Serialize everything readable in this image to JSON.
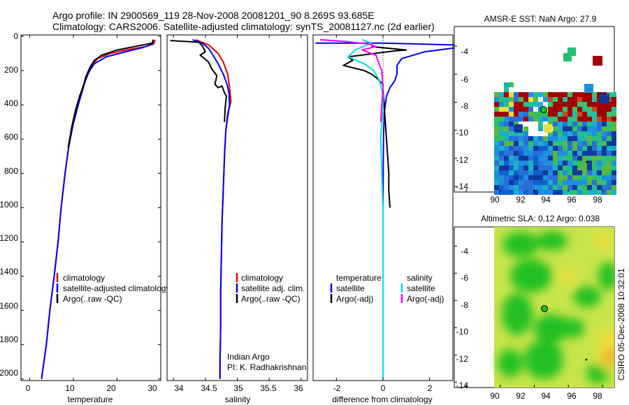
{
  "header": {
    "line1": "Argo profile: IN 2900569_119 28-Nov-2008 20081201_90 8.269S 93.685E",
    "line2": "Climatology: CARS2006. Satellite-adjusted climatology: synTS_20081127.nc (2d earlier)"
  },
  "side_label": "CSIRO 05-Dec-2008 10:32:01",
  "colors": {
    "climatology": "#e00000",
    "satellite": "#0000ee",
    "argo": "#000000",
    "satellite_sal": "#00e0e0",
    "argo_sal": "#ff00ff",
    "ocean_bg": "#20c020"
  },
  "chart_data": [
    {
      "id": "temperature",
      "type": "line",
      "xlabel": "temperature",
      "ylabel": "",
      "xlim": [
        -2,
        30
      ],
      "ylim": [
        2050,
        0
      ],
      "xticks": [
        "0",
        "10",
        "20",
        "30"
      ],
      "yticks": [
        "0",
        "200",
        "400",
        "600",
        "800",
        "1000",
        "1200",
        "1400",
        "1600",
        "1800",
        "2000"
      ],
      "legend": [
        "climatology",
        "satellite-adjusted climatology",
        "Argo(..raw -QC)"
      ],
      "series": [
        {
          "name": "climatology",
          "color": "#e00000",
          "points": [
            [
              28.7,
              20
            ],
            [
              28.4,
              45
            ],
            [
              26.5,
              60
            ],
            [
              22,
              80
            ],
            [
              18.5,
              100
            ],
            [
              15.5,
              130
            ],
            [
              14.3,
              170
            ],
            [
              13.2,
              230
            ],
            [
              12.2,
              290
            ],
            [
              11.5,
              350
            ],
            [
              10.6,
              430
            ],
            [
              9.8,
              520
            ],
            [
              8.9,
              650
            ],
            [
              8.1,
              800
            ],
            [
              7.2,
              1000
            ],
            [
              6.5,
              1200
            ],
            [
              5.6,
              1400
            ],
            [
              4.6,
              1600
            ],
            [
              3.8,
              1800
            ],
            [
              2.7,
              2000
            ]
          ]
        },
        {
          "name": "satellite-adjusted climatology",
          "color": "#0000ee",
          "points": [
            [
              28.3,
              20
            ],
            [
              28.1,
              45
            ],
            [
              26,
              65
            ],
            [
              22,
              90
            ],
            [
              17.5,
              120
            ],
            [
              14.8,
              160
            ],
            [
              13.5,
              210
            ],
            [
              12.6,
              270
            ],
            [
              11.8,
              340
            ],
            [
              10.9,
              420
            ],
            [
              9.9,
              520
            ],
            [
              8.9,
              650
            ],
            [
              8.1,
              800
            ],
            [
              7.2,
              1000
            ],
            [
              6.5,
              1200
            ],
            [
              5.6,
              1400
            ],
            [
              4.6,
              1600
            ],
            [
              3.8,
              1800
            ],
            [
              2.7,
              2000
            ]
          ]
        },
        {
          "name": "Argo(..raw -QC)",
          "color": "#000000",
          "points": [
            [
              28.3,
              20
            ],
            [
              28,
              40
            ],
            [
              24,
              60
            ],
            [
              20,
              80
            ],
            [
              16.5,
              110
            ],
            [
              14.8,
              140
            ],
            [
              13.8,
              180
            ],
            [
              12.8,
              240
            ],
            [
              12.3,
              290
            ],
            [
              11.4,
              350
            ],
            [
              10.5,
              430
            ],
            [
              9.7,
              520
            ],
            [
              8.8,
              650
            ]
          ]
        }
      ]
    },
    {
      "id": "salinity",
      "type": "line",
      "xlabel": "salinity",
      "ylabel": "",
      "xlim": [
        33.9,
        36.1
      ],
      "ylim": [
        2050,
        0
      ],
      "xticks": [
        "34",
        "34.5",
        "35",
        "35.5",
        "36"
      ],
      "legend": [
        "climatology",
        "satellite adj. clim.",
        "Argo(..raw -QC)"
      ],
      "annotation": [
        "Indian Argo",
        "PI: K. Radhakrishnan"
      ],
      "series": [
        {
          "name": "climatology",
          "color": "#e00000",
          "points": [
            [
              34.35,
              20
            ],
            [
              34.55,
              50
            ],
            [
              34.7,
              100
            ],
            [
              34.78,
              150
            ],
            [
              34.85,
              220
            ],
            [
              34.88,
              300
            ],
            [
              34.9,
              380
            ],
            [
              34.85,
              450
            ],
            [
              34.82,
              550
            ],
            [
              34.8,
              700
            ],
            [
              34.78,
              900
            ],
            [
              34.76,
              1100
            ],
            [
              34.75,
              1300
            ],
            [
              34.74,
              1500
            ],
            [
              34.74,
              1700
            ],
            [
              34.73,
              1900
            ],
            [
              34.73,
              2000
            ]
          ]
        },
        {
          "name": "satellite adj. clim.",
          "color": "#0000ee",
          "points": [
            [
              34.3,
              20
            ],
            [
              34.45,
              40
            ],
            [
              34.55,
              70
            ],
            [
              34.62,
              110
            ],
            [
              34.7,
              160
            ],
            [
              34.78,
              220
            ],
            [
              34.84,
              280
            ],
            [
              34.87,
              330
            ],
            [
              34.88,
              400
            ],
            [
              34.85,
              470
            ],
            [
              34.82,
              550
            ],
            [
              34.8,
              700
            ],
            [
              34.78,
              900
            ],
            [
              34.76,
              1100
            ],
            [
              34.75,
              1300
            ],
            [
              34.74,
              1500
            ],
            [
              34.74,
              1700
            ],
            [
              34.73,
              1900
            ],
            [
              34.73,
              2000
            ]
          ]
        },
        {
          "name": "Argo(..raw -QC)",
          "color": "#000000",
          "points": [
            [
              33.95,
              25
            ],
            [
              34.2,
              30
            ],
            [
              34.4,
              35
            ],
            [
              34.45,
              55
            ],
            [
              34.5,
              90
            ],
            [
              34.42,
              110
            ],
            [
              34.55,
              150
            ],
            [
              34.6,
              190
            ],
            [
              34.68,
              230
            ],
            [
              34.65,
              280
            ],
            [
              34.7,
              300
            ],
            [
              34.76,
              290
            ],
            [
              34.8,
              330
            ],
            [
              34.83,
              350
            ],
            [
              34.82,
              380
            ],
            [
              34.81,
              420
            ],
            [
              34.8,
              500
            ]
          ]
        }
      ]
    },
    {
      "id": "difference",
      "type": "line",
      "xlabel": "difference from climatology",
      "ylabel": "",
      "xlim": [
        -3,
        3
      ],
      "ylim": [
        2050,
        0
      ],
      "xticks": [
        "-2",
        "0",
        "2"
      ],
      "legend_groups": [
        {
          "title": "temperature",
          "items": [
            "satellite",
            "Argo(-adj)"
          ]
        },
        {
          "title": "salinity",
          "items": [
            "satellite",
            "Argo(-adj)"
          ]
        }
      ],
      "series": [
        {
          "name": "temperature satellite",
          "color": "#0000ee",
          "points": [
            [
              -2.9,
              40
            ],
            [
              -1.5,
              40
            ],
            [
              0,
              40
            ],
            [
              3,
              50
            ],
            [
              3.5,
              60
            ],
            [
              1.8,
              90
            ],
            [
              0.8,
              130
            ],
            [
              0.6,
              170
            ],
            [
              0.6,
              220
            ],
            [
              0.5,
              260
            ],
            [
              0.3,
              300
            ],
            [
              0.15,
              350
            ],
            [
              0.05,
              450
            ],
            [
              0.02,
              600
            ],
            [
              0.01,
              800
            ],
            [
              0,
              1000
            ],
            [
              0,
              1300
            ],
            [
              0,
              1600
            ],
            [
              0,
              2000
            ]
          ]
        },
        {
          "name": "temperature Argo(-adj)",
          "color": "#000000",
          "points": [
            [
              -0.5,
              60
            ],
            [
              1,
              80
            ],
            [
              0.5,
              85
            ],
            [
              -1.5,
              120
            ],
            [
              -1.3,
              140
            ],
            [
              -1.7,
              170
            ],
            [
              -0.8,
              200
            ],
            [
              -0.5,
              220
            ],
            [
              -0.3,
              240
            ],
            [
              0,
              280
            ],
            [
              0,
              320
            ],
            [
              0.05,
              400
            ],
            [
              0.1,
              500
            ],
            [
              0.15,
              600
            ],
            [
              0.2,
              700
            ],
            [
              0.25,
              800
            ],
            [
              0.25,
              900
            ],
            [
              0.3,
              1000
            ]
          ]
        },
        {
          "name": "salinity satellite",
          "color": "#00e0e0",
          "points": [
            [
              -0.9,
              20
            ],
            [
              -0.5,
              40
            ],
            [
              -1.2,
              80
            ],
            [
              -1.5,
              120
            ],
            [
              -0.8,
              160
            ],
            [
              -0.4,
              200
            ],
            [
              -0.15,
              260
            ],
            [
              0,
              340
            ],
            [
              0,
              400
            ],
            [
              -0.05,
              500
            ],
            [
              -0.1,
              600
            ],
            [
              -0.05,
              800
            ],
            [
              0,
              1000
            ],
            [
              0,
              1300
            ],
            [
              0,
              1600
            ],
            [
              0,
              2000
            ]
          ]
        },
        {
          "name": "salinity Argo(-adj)",
          "color": "#ff00ff",
          "points": [
            [
              -2.7,
              20
            ],
            [
              -1.6,
              30
            ],
            [
              -0.6,
              45
            ],
            [
              -0.3,
              60
            ],
            [
              -0.9,
              80
            ],
            [
              -0.3,
              110
            ],
            [
              -0.2,
              150
            ],
            [
              -0.05,
              200
            ],
            [
              0,
              300
            ],
            [
              -0.05,
              400
            ],
            [
              -0.1,
              500
            ]
          ]
        }
      ]
    },
    {
      "id": "sst_map",
      "type": "heatmap",
      "title": "AMSR-E SST: NaN Argo: 27.9",
      "xlim": [
        89.3,
        98.7
      ],
      "ylim": [
        -14.4,
        -2.6
      ],
      "xticks": [
        "90",
        "92",
        "94",
        "96",
        "98"
      ],
      "yticks": [
        "-4",
        "-6",
        "-8",
        "-10",
        "-12",
        "-14"
      ],
      "argo_position": [
        93.685,
        -8.269
      ],
      "track_point": [
        96.8,
        -12.1
      ]
    },
    {
      "id": "sla_map",
      "type": "heatmap",
      "title": "Altimetric SLA: 0.12 Argo: 0.038",
      "xlim": [
        89.3,
        98.7
      ],
      "ylim": [
        -14.4,
        -2.6
      ],
      "xticks": [
        "90",
        "92",
        "94",
        "96",
        "98"
      ],
      "yticks": [
        "-4",
        "-6",
        "-8",
        "-10",
        "-12",
        "-14"
      ],
      "argo_position": [
        93.685,
        -8.269
      ],
      "track_point": [
        96.8,
        -12.1
      ]
    }
  ]
}
